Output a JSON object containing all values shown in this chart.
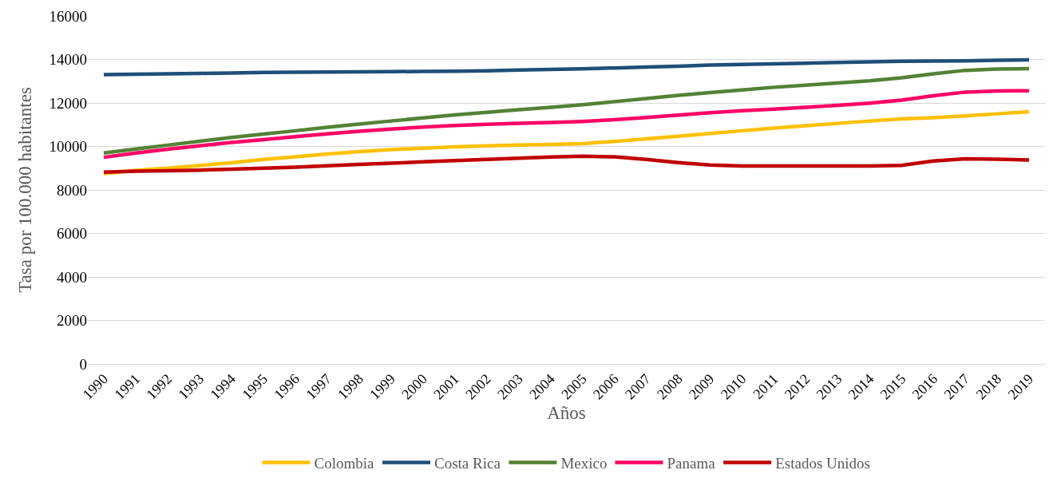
{
  "chart_data": {
    "type": "line",
    "ylabel": "Tasa por 100.000 habitantes",
    "xlabel": "Años",
    "categories": [
      "1990",
      "1991",
      "1992",
      "1993",
      "1994",
      "1995",
      "1996",
      "1997",
      "1998",
      "1999",
      "2000",
      "2001",
      "2002",
      "2003",
      "2004",
      "2005",
      "2006",
      "2007",
      "2008",
      "2009",
      "2010",
      "2011",
      "2012",
      "2013",
      "2014",
      "2015",
      "2016",
      "2017",
      "2018",
      "2019"
    ],
    "series": [
      {
        "name": "Colombia",
        "color": "#ffc000",
        "values": [
          8750,
          8900,
          9000,
          9120,
          9250,
          9400,
          9520,
          9650,
          9760,
          9850,
          9920,
          9980,
          10030,
          10060,
          10090,
          10130,
          10230,
          10350,
          10470,
          10600,
          10720,
          10840,
          10950,
          11060,
          11170,
          11270,
          11320,
          11400,
          11500,
          11600
        ]
      },
      {
        "name": "Costa Rica",
        "color": "#1f4e79",
        "values": [
          13300,
          13320,
          13340,
          13360,
          13380,
          13400,
          13410,
          13420,
          13430,
          13440,
          13450,
          13460,
          13480,
          13510,
          13540,
          13570,
          13610,
          13650,
          13690,
          13740,
          13770,
          13800,
          13830,
          13860,
          13890,
          13920,
          13930,
          13940,
          13960,
          13980
        ]
      },
      {
        "name": "Mexico",
        "color": "#548235",
        "values": [
          9700,
          9880,
          10060,
          10240,
          10410,
          10570,
          10720,
          10880,
          11030,
          11170,
          11310,
          11450,
          11570,
          11690,
          11800,
          11920,
          12060,
          12200,
          12350,
          12480,
          12600,
          12720,
          12820,
          12920,
          13020,
          13160,
          13340,
          13500,
          13560,
          13580
        ]
      },
      {
        "name": "Panama",
        "color": "#ff0066",
        "values": [
          9500,
          9700,
          9870,
          10030,
          10180,
          10310,
          10450,
          10580,
          10700,
          10800,
          10890,
          10960,
          11020,
          11060,
          11100,
          11150,
          11230,
          11330,
          11440,
          11550,
          11640,
          11720,
          11800,
          11890,
          11990,
          12130,
          12330,
          12500,
          12550,
          12560
        ]
      },
      {
        "name": "Estados Unidos",
        "color": "#c00000",
        "values": [
          8820,
          8860,
          8880,
          8910,
          8950,
          9000,
          9050,
          9110,
          9170,
          9230,
          9290,
          9350,
          9400,
          9460,
          9510,
          9550,
          9520,
          9400,
          9260,
          9150,
          9100,
          9100,
          9100,
          9100,
          9100,
          9130,
          9330,
          9430,
          9410,
          9380
        ]
      }
    ],
    "ylim": [
      0,
      16000
    ],
    "yticks": [
      0,
      2000,
      4000,
      6000,
      8000,
      10000,
      12000,
      14000,
      16000
    ],
    "grid": "y",
    "legend": "bottom",
    "line_style": "solid",
    "marker": "none"
  }
}
